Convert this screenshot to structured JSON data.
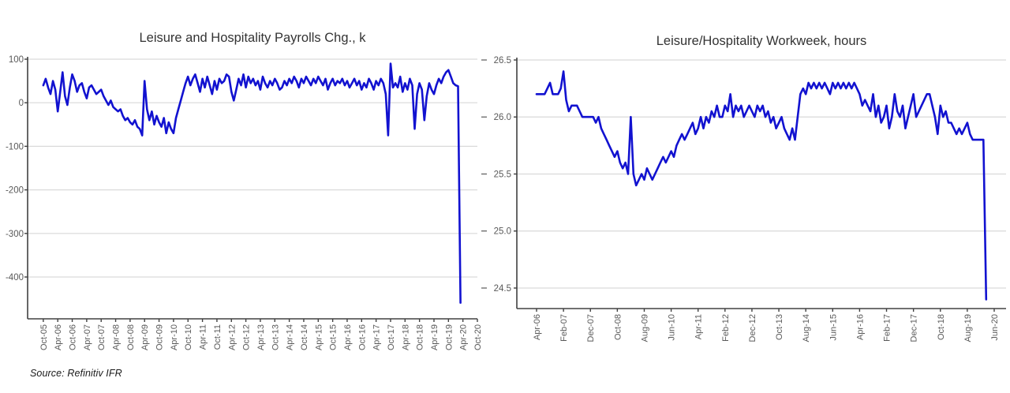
{
  "source_note": "Source: Refinitiv IFR",
  "colors": {
    "line": "#1212D0",
    "grid": "#D9D9D9",
    "axis": "#404040",
    "tick_text": "#595959",
    "title_text": "#333333"
  },
  "chart_data": [
    {
      "type": "line",
      "title": "Leisure and Hospitality Payrolls Chg., k",
      "frequency": "monthly",
      "start": "Oct-2005",
      "end": "Mar-2020",
      "ylim": [
        -496,
        100
      ],
      "grid": "horizontal",
      "legend": "none",
      "y_ticks": [
        {
          "label": "100",
          "value": 100
        },
        {
          "label": "0",
          "value": 0
        },
        {
          "label": "-100",
          "value": -100
        },
        {
          "label": "-200",
          "value": -200
        },
        {
          "label": "-300",
          "value": -300
        },
        {
          "label": "-400",
          "value": -400
        }
      ],
      "x_ticks": [
        {
          "label": "Oct-05",
          "m": 0
        },
        {
          "label": "Apr-06",
          "m": 6
        },
        {
          "label": "Oct-06",
          "m": 12
        },
        {
          "label": "Apr-07",
          "m": 18
        },
        {
          "label": "Oct-07",
          "m": 24
        },
        {
          "label": "Apr-08",
          "m": 30
        },
        {
          "label": "Oct-08",
          "m": 36
        },
        {
          "label": "Apr-09",
          "m": 42
        },
        {
          "label": "Oct-09",
          "m": 48
        },
        {
          "label": "Apr-10",
          "m": 54
        },
        {
          "label": "Oct-10",
          "m": 60
        },
        {
          "label": "Apr-11",
          "m": 66
        },
        {
          "label": "Oct-11",
          "m": 72
        },
        {
          "label": "Apr-12",
          "m": 78
        },
        {
          "label": "Oct-12",
          "m": 84
        },
        {
          "label": "Apr-13",
          "m": 90
        },
        {
          "label": "Oct-13",
          "m": 96
        },
        {
          "label": "Apr-14",
          "m": 102
        },
        {
          "label": "Oct-14",
          "m": 108
        },
        {
          "label": "Apr-15",
          "m": 114
        },
        {
          "label": "Oct-15",
          "m": 120
        },
        {
          "label": "Apr-16",
          "m": 126
        },
        {
          "label": "Oct-16",
          "m": 132
        },
        {
          "label": "Apr-17",
          "m": 138
        },
        {
          "label": "Oct-17",
          "m": 144
        },
        {
          "label": "Apr-18",
          "m": 150
        },
        {
          "label": "Oct-18",
          "m": 156
        },
        {
          "label": "Apr-19",
          "m": 162
        },
        {
          "label": "Oct-19",
          "m": 168
        },
        {
          "label": "Apr-20",
          "m": 174
        },
        {
          "label": "Oct-20",
          "m": 180
        }
      ],
      "values": [
        40,
        55,
        35,
        20,
        50,
        30,
        -20,
        25,
        70,
        15,
        -5,
        35,
        65,
        50,
        25,
        40,
        45,
        25,
        10,
        35,
        40,
        30,
        20,
        25,
        30,
        15,
        5,
        -5,
        5,
        -10,
        -15,
        -20,
        -15,
        -30,
        -40,
        -35,
        -45,
        -50,
        -40,
        -55,
        -60,
        -75,
        50,
        -15,
        -40,
        -20,
        -50,
        -30,
        -45,
        -55,
        -35,
        -70,
        -45,
        -60,
        -70,
        -35,
        -15,
        5,
        25,
        45,
        60,
        40,
        55,
        65,
        45,
        25,
        55,
        35,
        60,
        40,
        20,
        50,
        30,
        55,
        45,
        50,
        65,
        60,
        25,
        5,
        30,
        55,
        40,
        65,
        35,
        60,
        45,
        55,
        40,
        50,
        30,
        60,
        45,
        35,
        50,
        40,
        55,
        45,
        30,
        35,
        50,
        40,
        55,
        45,
        60,
        50,
        35,
        55,
        45,
        60,
        50,
        40,
        55,
        45,
        60,
        50,
        40,
        55,
        30,
        45,
        55,
        40,
        50,
        45,
        55,
        40,
        50,
        35,
        45,
        55,
        40,
        50,
        30,
        45,
        35,
        55,
        45,
        30,
        50,
        40,
        55,
        45,
        20,
        -75,
        90,
        35,
        45,
        35,
        60,
        25,
        45,
        30,
        55,
        40,
        -60,
        20,
        45,
        30,
        -40,
        15,
        45,
        30,
        20,
        40,
        55,
        45,
        60,
        70,
        75,
        60,
        45,
        40,
        38,
        -459
      ]
    },
    {
      "type": "line",
      "title": "Leisure/Hospitality Workweek, hours",
      "frequency": "monthly",
      "start": "Apr-2006",
      "end": "Mar-2020",
      "ylim": [
        24.32,
        26.5
      ],
      "grid": "horizontal",
      "legend": "none",
      "y_ticks": [
        {
          "label": "26.5",
          "value": 26.5
        },
        {
          "label": "26.0",
          "value": 26.0
        },
        {
          "label": "25.5",
          "value": 25.5
        },
        {
          "label": "25.0",
          "value": 25.0
        },
        {
          "label": "24.5",
          "value": 24.5
        }
      ],
      "x_ticks": [
        {
          "label": "Apr-06",
          "m": 0
        },
        {
          "label": "Feb-07",
          "m": 10
        },
        {
          "label": "Dec-07",
          "m": 20
        },
        {
          "label": "Oct-08",
          "m": 30
        },
        {
          "label": "Aug-09",
          "m": 40
        },
        {
          "label": "Jun-10",
          "m": 50
        },
        {
          "label": "Apr-11",
          "m": 60
        },
        {
          "label": "Feb-12",
          "m": 70
        },
        {
          "label": "Dec-12",
          "m": 80
        },
        {
          "label": "Oct-13",
          "m": 90
        },
        {
          "label": "Aug-14",
          "m": 100
        },
        {
          "label": "Jun-15",
          "m": 110
        },
        {
          "label": "Apr-16",
          "m": 120
        },
        {
          "label": "Feb-17",
          "m": 130
        },
        {
          "label": "Dec-17",
          "m": 140
        },
        {
          "label": "Oct-18",
          "m": 150
        },
        {
          "label": "Aug-19",
          "m": 160
        },
        {
          "label": "Jun-20",
          "m": 170
        }
      ],
      "values": [
        26.2,
        26.2,
        26.2,
        26.2,
        26.25,
        26.3,
        26.2,
        26.2,
        26.2,
        26.25,
        26.4,
        26.15,
        26.05,
        26.1,
        26.1,
        26.1,
        26.05,
        26.0,
        26.0,
        26.0,
        26.0,
        26.0,
        25.95,
        26.0,
        25.9,
        25.85,
        25.8,
        25.75,
        25.7,
        25.65,
        25.7,
        25.6,
        25.55,
        25.6,
        25.5,
        26.0,
        25.5,
        25.4,
        25.45,
        25.5,
        25.45,
        25.55,
        25.5,
        25.45,
        25.5,
        25.55,
        25.6,
        25.65,
        25.6,
        25.65,
        25.7,
        25.65,
        25.75,
        25.8,
        25.85,
        25.8,
        25.85,
        25.9,
        25.95,
        25.85,
        25.9,
        26.0,
        25.9,
        26.0,
        25.95,
        26.05,
        26.0,
        26.1,
        26.0,
        26.0,
        26.1,
        26.05,
        26.2,
        26.0,
        26.1,
        26.05,
        26.1,
        26.0,
        26.05,
        26.1,
        26.05,
        26.0,
        26.1,
        26.05,
        26.1,
        26.0,
        26.05,
        25.95,
        26.0,
        25.9,
        25.95,
        26.0,
        25.9,
        25.85,
        25.8,
        25.9,
        25.8,
        26.0,
        26.2,
        26.25,
        26.2,
        26.3,
        26.25,
        26.3,
        26.25,
        26.3,
        26.25,
        26.3,
        26.25,
        26.2,
        26.3,
        26.25,
        26.3,
        26.25,
        26.3,
        26.25,
        26.3,
        26.25,
        26.3,
        26.25,
        26.2,
        26.1,
        26.15,
        26.1,
        26.05,
        26.2,
        26.0,
        26.1,
        25.95,
        26.0,
        26.1,
        25.9,
        26.0,
        26.2,
        26.05,
        26.0,
        26.1,
        25.9,
        26.0,
        26.1,
        26.2,
        26.0,
        26.05,
        26.1,
        26.15,
        26.2,
        26.2,
        26.1,
        26.0,
        25.85,
        26.1,
        26.0,
        26.05,
        25.95,
        25.95,
        25.9,
        25.85,
        25.9,
        25.85,
        25.9,
        25.95,
        25.85,
        25.8,
        25.8,
        25.8,
        25.8,
        25.8,
        24.4
      ]
    }
  ]
}
